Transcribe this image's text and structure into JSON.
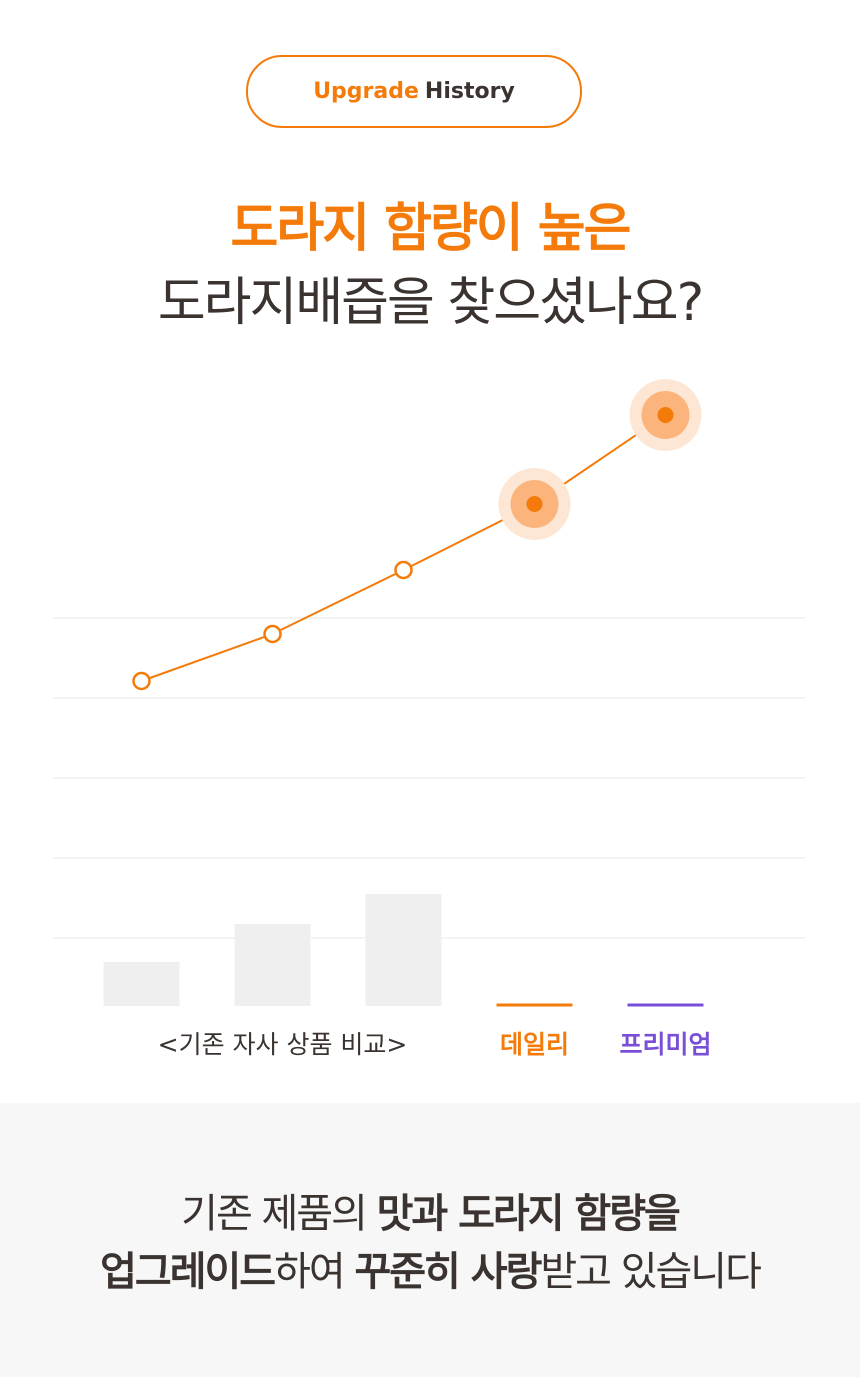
{
  "badge": {
    "accent": "Upgrade",
    "text": "History"
  },
  "headline": [
    "도라지 함량이 높은",
    "도라지배즙을 찾으셨나요?"
  ],
  "chart_data": {
    "type": "line",
    "categories": [
      null,
      null,
      null,
      "데일리",
      "프리미엄"
    ],
    "category_colors": [
      null,
      null,
      null,
      "#f47b0a",
      "#7a4fd8"
    ],
    "group_label": "<기존 자사 상품 비교>",
    "ylim": [
      0,
      150
    ],
    "yticks": [
      17,
      37,
      57,
      77,
      97
    ],
    "grid": true,
    "series": [
      {
        "type": "bar",
        "color": "#efefef",
        "values": [
          11,
          20.5,
          28,
          null,
          null
        ]
      },
      {
        "type": "line",
        "color": "#f47b0a",
        "values": [
          81.25,
          93,
          109,
          125.5,
          147.75
        ]
      }
    ]
  },
  "footer": {
    "lines": [
      [
        {
          "text": "기존 제품의 ",
          "bold": false
        },
        {
          "text": "맛과 도라지 함량을",
          "bold": true
        }
      ],
      [
        {
          "text": "업그레이드",
          "bold": true
        },
        {
          "text": "하여 ",
          "bold": false
        },
        {
          "text": "꾸준히 사랑",
          "bold": true
        },
        {
          "text": "받고 있습니다",
          "bold": false
        }
      ]
    ]
  }
}
